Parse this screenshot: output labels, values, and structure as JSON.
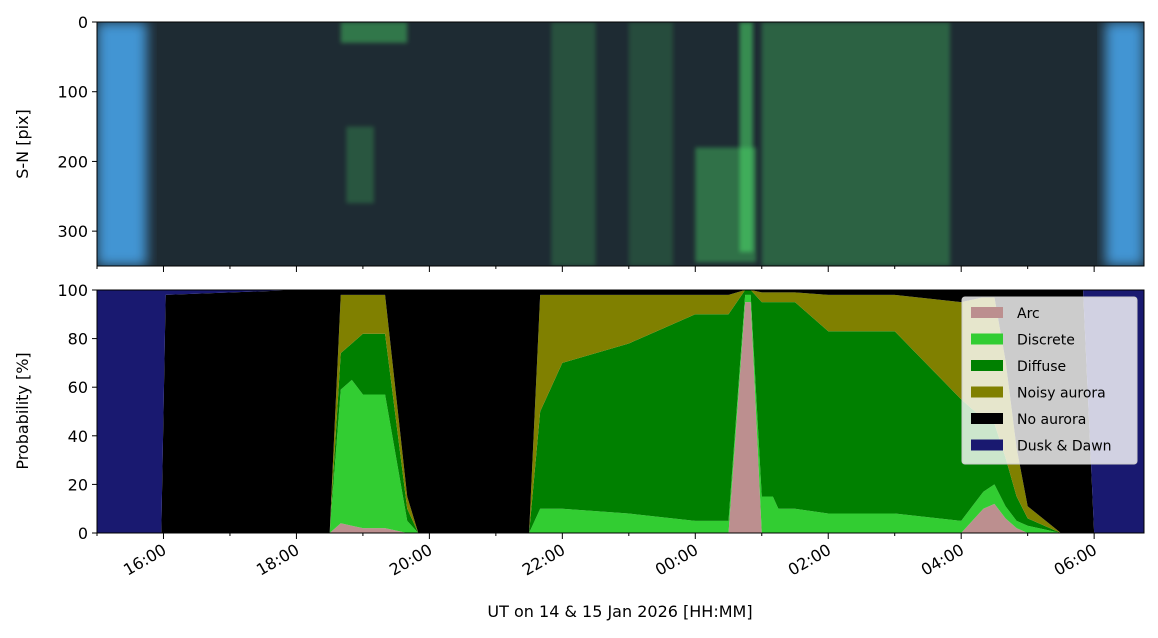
{
  "chart_data": [
    {
      "type": "heatmap",
      "panel": "keogram",
      "ylabel": "S-N [pix]",
      "ylim": [
        350,
        0
      ],
      "yticks": [
        0,
        100,
        200,
        300
      ],
      "grid": false,
      "colors": {
        "background": "#1e2b33",
        "twilight": "#4aa8f0",
        "aurora": "#4ee06a"
      },
      "twilight_intervals": [
        {
          "start": "15:00",
          "end": "15:45"
        },
        {
          "start": "06:10",
          "end": "06:45"
        }
      ],
      "aurora_features": [
        {
          "start": "18:40",
          "end": "19:40",
          "sn_min": 0,
          "sn_max": 30,
          "intensity": 0.7
        },
        {
          "start": "18:45",
          "end": "19:10",
          "sn_min": 150,
          "sn_max": 260,
          "intensity": 0.4
        },
        {
          "start": "21:50",
          "end": "22:30",
          "sn_min": 0,
          "sn_max": 350,
          "intensity": 0.35
        },
        {
          "start": "23:00",
          "end": "23:40",
          "sn_min": 0,
          "sn_max": 350,
          "intensity": 0.3
        },
        {
          "start": "00:00",
          "end": "00:55",
          "sn_min": 180,
          "sn_max": 345,
          "intensity": 0.65
        },
        {
          "start": "00:40",
          "end": "00:52",
          "sn_min": 0,
          "sn_max": 330,
          "intensity": 0.9
        },
        {
          "start": "01:00",
          "end": "03:50",
          "sn_min": 0,
          "sn_max": 350,
          "intensity": 0.5
        }
      ]
    },
    {
      "type": "area",
      "panel": "probability",
      "ylabel": "Probability [%]",
      "xlabel": "UT on 14 & 15 Jan 2026 [HH:MM]",
      "ylim": [
        0,
        100
      ],
      "yticks": [
        0,
        20,
        40,
        60,
        80,
        100
      ],
      "xlim": [
        "15:00",
        "06:45"
      ],
      "xticks": [
        "16:00",
        "18:00",
        "20:00",
        "22:00",
        "00:00",
        "02:00",
        "04:00",
        "06:00"
      ],
      "legend_position": "upper-right",
      "grid": false,
      "x": [
        "15:00",
        "15:45",
        "15:58",
        "16:02",
        "18:00",
        "18:20",
        "18:25",
        "18:30",
        "18:40",
        "18:50",
        "19:00",
        "19:20",
        "19:40",
        "19:50",
        "20:00",
        "20:30",
        "21:00",
        "21:10",
        "21:25",
        "21:30",
        "21:40",
        "22:00",
        "23:00",
        "00:00",
        "00:15",
        "00:30",
        "00:45",
        "00:50",
        "01:00",
        "01:10",
        "01:15",
        "01:30",
        "02:00",
        "03:00",
        "04:00",
        "04:10",
        "04:20",
        "04:30",
        "04:40",
        "04:50",
        "05:00",
        "05:30",
        "05:40",
        "05:50",
        "06:00",
        "06:45"
      ],
      "series": [
        {
          "name": "Arc",
          "color": "#bc8f8f",
          "values": [
            0,
            0,
            0,
            0,
            0,
            0,
            0,
            0,
            4,
            3,
            2,
            2,
            0,
            0,
            0,
            0,
            0,
            0,
            0,
            0,
            0,
            0,
            0,
            0,
            0,
            0,
            95,
            95,
            0,
            0,
            0,
            0,
            0,
            0,
            0,
            5,
            10,
            12,
            6,
            2,
            0,
            0,
            0,
            0,
            0,
            0
          ]
        },
        {
          "name": "Discrete",
          "color": "#32cd32",
          "values": [
            0,
            0,
            0,
            0,
            0,
            0,
            0,
            0,
            55,
            60,
            55,
            55,
            5,
            0,
            0,
            0,
            0,
            0,
            0,
            0,
            10,
            10,
            8,
            5,
            5,
            5,
            3,
            3,
            15,
            15,
            10,
            10,
            8,
            8,
            5,
            6,
            7,
            8,
            5,
            3,
            3,
            0,
            0,
            0,
            0,
            0
          ]
        },
        {
          "name": "Diffuse",
          "color": "#008000",
          "values": [
            0,
            0,
            0,
            0,
            0,
            0,
            0,
            0,
            15,
            15,
            25,
            25,
            5,
            0,
            0,
            0,
            0,
            0,
            0,
            0,
            40,
            60,
            70,
            85,
            85,
            85,
            2,
            2,
            80,
            80,
            85,
            85,
            75,
            75,
            50,
            40,
            30,
            25,
            20,
            10,
            3,
            0,
            0,
            0,
            0,
            0
          ]
        },
        {
          "name": "Noisy aurora",
          "color": "#808000",
          "values": [
            0,
            0,
            0,
            0,
            0,
            0,
            0,
            0,
            24,
            20,
            16,
            16,
            5,
            0,
            0,
            0,
            0,
            0,
            0,
            0,
            48,
            28,
            20,
            8,
            8,
            8,
            0,
            0,
            4,
            4,
            4,
            4,
            15,
            15,
            40,
            45,
            50,
            52,
            40,
            20,
            5,
            0,
            0,
            0,
            0,
            0
          ]
        },
        {
          "name": "No aurora",
          "color": "#000000",
          "values": [
            0,
            0,
            0,
            98,
            100,
            100,
            100,
            100,
            2,
            2,
            2,
            2,
            85,
            100,
            100,
            100,
            100,
            100,
            100,
            100,
            2,
            2,
            2,
            2,
            2,
            2,
            0,
            0,
            1,
            1,
            1,
            1,
            2,
            2,
            5,
            4,
            3,
            3,
            29,
            65,
            89,
            100,
            100,
            100,
            0,
            0
          ]
        },
        {
          "name": "Dusk & Dawn",
          "color": "#191970",
          "values": [
            100,
            100,
            100,
            2,
            0,
            0,
            0,
            0,
            0,
            0,
            0,
            0,
            0,
            0,
            0,
            0,
            0,
            0,
            0,
            0,
            0,
            0,
            0,
            0,
            0,
            0,
            0,
            0,
            0,
            0,
            0,
            0,
            0,
            0,
            0,
            0,
            0,
            0,
            0,
            0,
            0,
            0,
            0,
            0,
            100,
            100
          ]
        }
      ]
    }
  ]
}
